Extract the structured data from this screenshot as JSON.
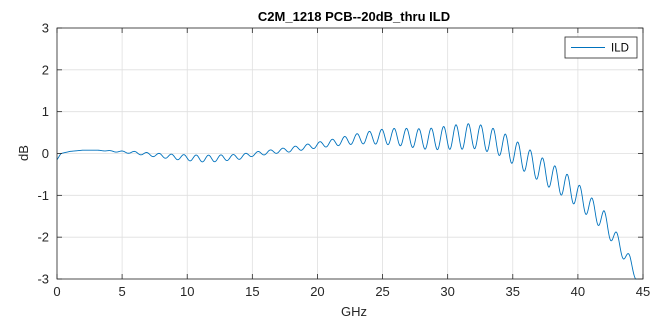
{
  "chart_data": {
    "type": "line",
    "title": "C2M_1218 PCB--20dB_thru ILD",
    "xlabel": "GHz",
    "ylabel": "dB",
    "xlim": [
      0,
      45
    ],
    "ylim": [
      -3,
      3
    ],
    "xticks": [
      0,
      5,
      10,
      15,
      20,
      25,
      30,
      35,
      40,
      45
    ],
    "yticks": [
      -3,
      -2,
      -1,
      0,
      1,
      2,
      3
    ],
    "grid": true,
    "legend_position": "top-right",
    "series": [
      {
        "name": "ILD",
        "color": "#0072BD",
        "x": [
          0,
          0.3,
          1,
          2,
          3,
          4,
          5,
          6,
          7,
          8,
          9,
          10,
          11,
          12,
          13,
          14,
          15,
          16,
          17,
          18,
          19,
          20,
          21,
          22,
          23,
          24,
          25,
          26,
          27,
          28,
          29,
          30,
          31,
          32,
          33,
          34,
          35,
          36,
          37,
          38,
          39,
          40,
          41,
          42,
          43,
          44,
          44.6
        ],
        "y": [
          -0.15,
          0.0,
          0.05,
          0.08,
          0.08,
          0.06,
          0.04,
          0.02,
          -0.02,
          -0.05,
          -0.08,
          -0.1,
          -0.12,
          -0.12,
          -0.1,
          -0.08,
          -0.02,
          0.02,
          0.06,
          0.1,
          0.15,
          0.2,
          0.25,
          0.3,
          0.35,
          0.38,
          0.4,
          0.4,
          0.38,
          0.35,
          0.35,
          0.38,
          0.4,
          0.42,
          0.35,
          0.25,
          0.05,
          -0.15,
          -0.35,
          -0.55,
          -0.75,
          -1.0,
          -1.3,
          -1.6,
          -2.1,
          -2.6,
          -3.0
        ],
        "ripple_amplitude": [
          0.0,
          0.0,
          0.0,
          0.0,
          0.0,
          0.01,
          0.02,
          0.03,
          0.04,
          0.05,
          0.06,
          0.07,
          0.08,
          0.08,
          0.07,
          0.06,
          0.05,
          0.05,
          0.05,
          0.06,
          0.06,
          0.07,
          0.08,
          0.1,
          0.12,
          0.15,
          0.18,
          0.2,
          0.22,
          0.24,
          0.26,
          0.28,
          0.3,
          0.3,
          0.3,
          0.3,
          0.3,
          0.3,
          0.3,
          0.3,
          0.3,
          0.28,
          0.26,
          0.24,
          0.2,
          0.15,
          0.1
        ],
        "ripple_period_ghz": 0.95
      }
    ]
  }
}
